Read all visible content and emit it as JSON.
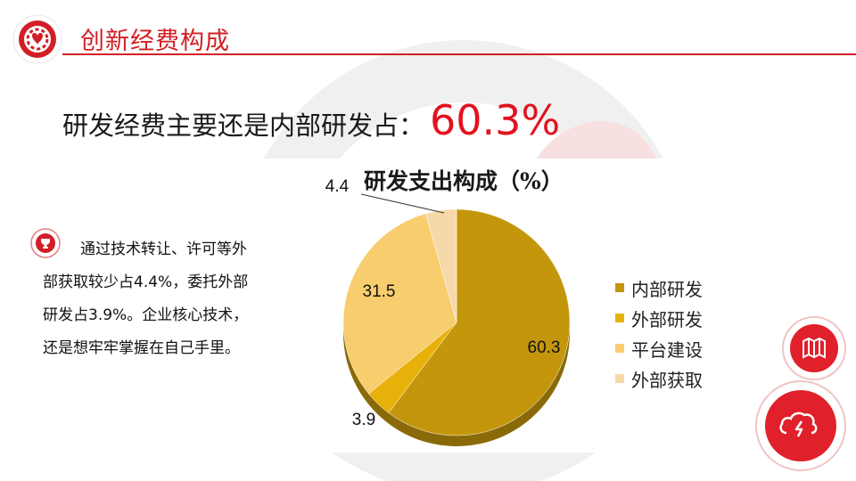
{
  "header": {
    "title": "创新经费构成"
  },
  "headline": {
    "text": "研发经费主要还是内部研发占：",
    "value": "60.3%"
  },
  "body_text": "通过技术转让、许可等外部获取较少占4.4%，委托外部研发占3.9%。企业核心技术，还是想牢牢掌握在自己手里。",
  "icons": {
    "logo": "gear-heart-logo-icon",
    "bullet": "trophy-icon",
    "fab_top": "map-icon",
    "fab_bottom": "lightning-icon"
  },
  "colors": {
    "accent": "#d21f26",
    "headline_value": "#e3121f"
  },
  "chart_data": {
    "type": "pie",
    "title": "研发支出构成（%）",
    "series": [
      {
        "name": "内部研发",
        "value": 60.3,
        "label": "60.3",
        "color": "#c4960c"
      },
      {
        "name": "外部研发",
        "value": 3.9,
        "label": "3.9",
        "color": "#e8b10a"
      },
      {
        "name": "平台建设",
        "value": 31.5,
        "label": "31.5",
        "color": "#f7cd6e"
      },
      {
        "name": "外部获取",
        "value": 4.4,
        "label": "4.4",
        "color": "#f6d9a8"
      }
    ],
    "legend_position": "right"
  }
}
